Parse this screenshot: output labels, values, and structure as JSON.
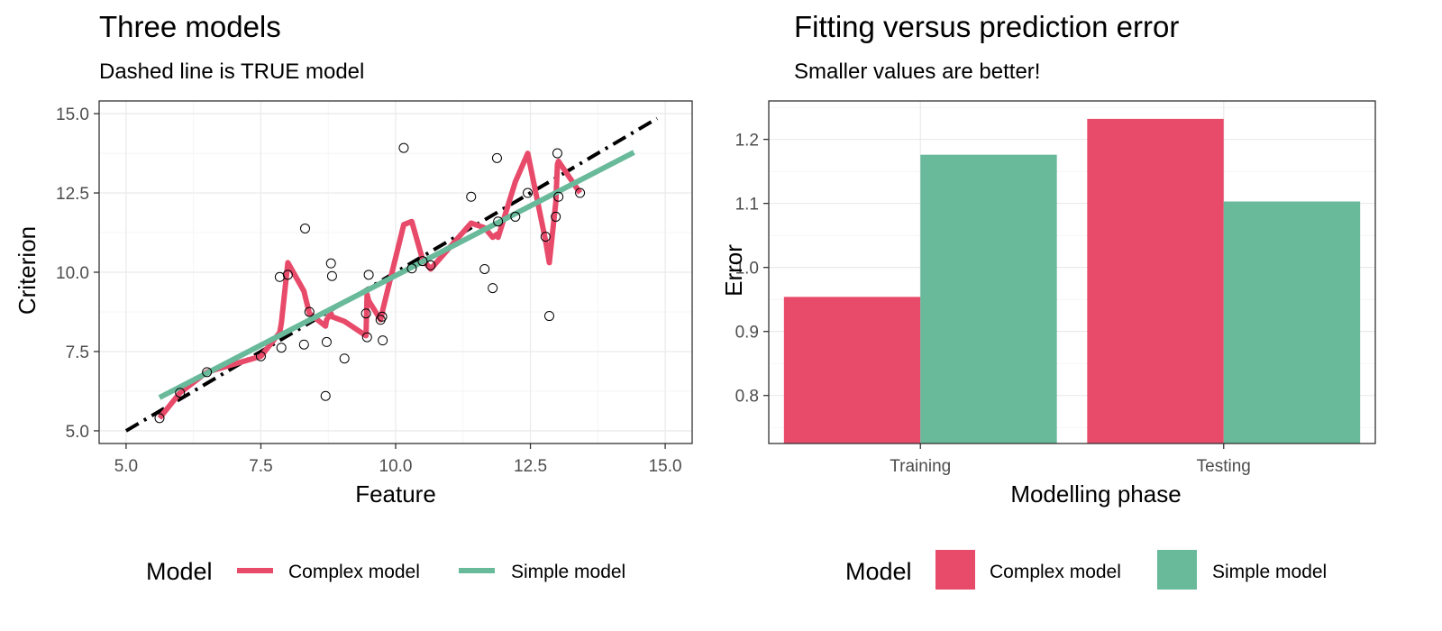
{
  "chart_data": [
    {
      "type": "line",
      "title": "Three models",
      "subtitle": "Dashed line is TRUE model",
      "xlabel": "Feature",
      "ylabel": "Criterion",
      "xlim": [
        4.5,
        15.5
      ],
      "ylim": [
        4.6,
        15.4
      ],
      "x_ticks": [
        5.0,
        7.5,
        10.0,
        12.5,
        15.0
      ],
      "x_tick_labels": [
        "5.0",
        "7.5",
        "10.0",
        "12.5",
        "15.0"
      ],
      "y_ticks": [
        5.0,
        7.5,
        10.0,
        12.5,
        15.0
      ],
      "y_tick_labels": [
        "5.0",
        "7.5",
        "10.0",
        "12.5",
        "15.0"
      ],
      "grid": true,
      "legend_position": "bottom",
      "legend_title": "Model",
      "true_model": {
        "x": [
          5.0,
          14.85
        ],
        "y": [
          5.0,
          14.85
        ],
        "color": "#000000",
        "dash": "longdash-dot"
      },
      "points": {
        "x": [
          5.62,
          6.0,
          6.5,
          7.5,
          7.85,
          7.88,
          8.0,
          8.3,
          8.32,
          8.4,
          8.7,
          8.72,
          8.8,
          8.82,
          9.05,
          9.45,
          9.47,
          9.5,
          9.72,
          9.75,
          9.76,
          10.15,
          10.3,
          10.5,
          10.65,
          11.4,
          11.65,
          11.8,
          11.88,
          11.9,
          12.22,
          12.45,
          12.78,
          12.85,
          12.97,
          13.0,
          13.02,
          13.42
        ],
        "y": [
          5.4,
          6.2,
          6.85,
          7.35,
          9.85,
          7.62,
          9.92,
          7.72,
          11.38,
          8.75,
          6.1,
          7.8,
          10.28,
          9.88,
          7.28,
          8.7,
          7.95,
          9.92,
          8.5,
          8.6,
          7.85,
          13.92,
          10.12,
          10.35,
          10.22,
          12.38,
          10.1,
          9.5,
          13.6,
          11.6,
          11.75,
          12.5,
          11.12,
          8.62,
          11.75,
          13.75,
          12.38,
          12.5
        ]
      },
      "series": [
        {
          "name": "Complex model",
          "color": "#E84A6A",
          "x": [
            5.62,
            6.0,
            6.5,
            7.5,
            7.85,
            7.88,
            8.0,
            8.3,
            8.32,
            8.4,
            8.7,
            8.72,
            8.8,
            8.82,
            9.05,
            9.45,
            9.47,
            9.5,
            9.72,
            9.75,
            9.76,
            10.15,
            10.3,
            10.5,
            10.65,
            11.4,
            11.65,
            11.8,
            11.88,
            11.9,
            12.22,
            12.45,
            12.78,
            12.85,
            12.97,
            13.0,
            13.02,
            13.42
          ],
          "y": [
            5.4,
            6.2,
            6.85,
            7.35,
            8.1,
            8.4,
            10.3,
            9.4,
            9.25,
            8.7,
            8.3,
            8.5,
            8.7,
            8.6,
            8.45,
            8.0,
            9.3,
            9.1,
            8.5,
            8.7,
            8.8,
            11.5,
            11.6,
            10.4,
            10.1,
            11.55,
            11.4,
            11.1,
            11.2,
            11.1,
            12.85,
            13.75,
            11.0,
            10.3,
            12.2,
            13.4,
            13.5,
            12.5
          ]
        },
        {
          "name": "Simple model",
          "color": "#69B99B",
          "x": [
            5.62,
            14.42
          ],
          "y": [
            6.05,
            13.78
          ]
        }
      ]
    },
    {
      "type": "bar",
      "title": "Fitting versus prediction error",
      "subtitle": "Smaller values are better!",
      "xlabel": "Modelling phase",
      "ylabel": "Error",
      "categories": [
        "Training",
        "Testing"
      ],
      "ylim": [
        0.725,
        1.26
      ],
      "y_ticks": [
        0.8,
        0.9,
        1.0,
        1.1,
        1.2
      ],
      "y_tick_labels": [
        "0.8",
        "0.9",
        "1.0",
        "1.1",
        "1.2"
      ],
      "grid": true,
      "legend_position": "bottom",
      "legend_title": "Model",
      "series": [
        {
          "name": "Complex model",
          "color": "#E84A6A",
          "values": [
            0.954,
            1.232
          ]
        },
        {
          "name": "Simple model",
          "color": "#69B99B",
          "values": [
            1.176,
            1.103
          ]
        }
      ]
    }
  ]
}
